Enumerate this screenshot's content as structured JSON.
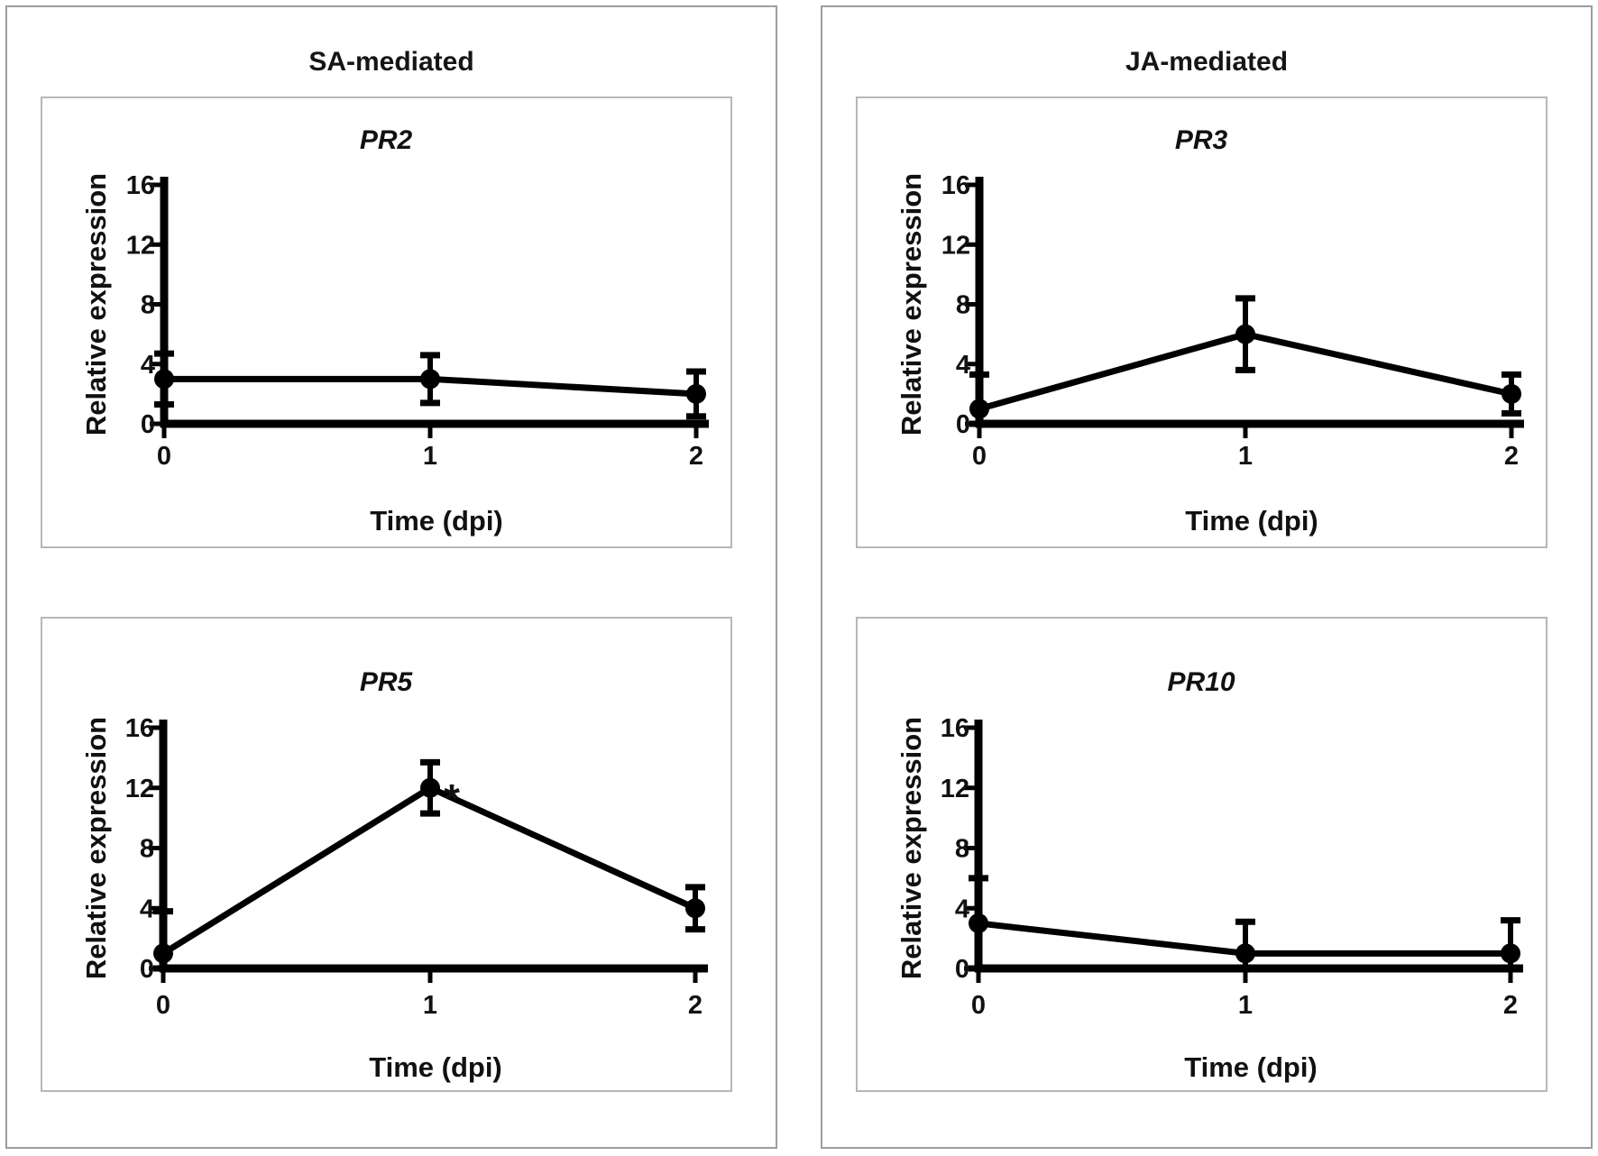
{
  "panels": [
    {
      "title": "SA-mediated",
      "chart_ids": [
        "PR2",
        "PR5"
      ]
    },
    {
      "title": "JA-mediated",
      "chart_ids": [
        "PR3",
        "PR10"
      ]
    }
  ],
  "colors": {
    "series": "#000000",
    "text": "#111111",
    "panel_border": "#9d9d9d",
    "chart_border": "#b7b7b7",
    "background": "#ffffff"
  },
  "chart_data": [
    {
      "id": "PR2",
      "type": "line",
      "panel": "SA-mediated",
      "position": "top-left",
      "title": "PR2",
      "xlabel": "Time (dpi)",
      "ylabel": "Relative expression",
      "x": [
        0,
        1,
        2
      ],
      "xticklabels": [
        "0",
        "1",
        "2"
      ],
      "y": [
        3,
        3,
        2
      ],
      "yerr": [
        1.7,
        1.6,
        1.5
      ],
      "ylim": [
        0,
        16
      ],
      "yticks": [
        0,
        4,
        8,
        12,
        16
      ],
      "marker": "filled-circle",
      "grid": false,
      "legend": null,
      "significance": []
    },
    {
      "id": "PR3",
      "type": "line",
      "panel": "JA-mediated",
      "position": "top-right",
      "title": "PR3",
      "xlabel": "Time (dpi)",
      "ylabel": "Relative expression",
      "x": [
        0,
        1,
        2
      ],
      "xticklabels": [
        "0",
        "1",
        "2"
      ],
      "y": [
        1,
        6,
        2
      ],
      "yerr": [
        2.3,
        2.4,
        1.3
      ],
      "ylim": [
        0,
        16
      ],
      "yticks": [
        0,
        4,
        8,
        12,
        16
      ],
      "marker": "filled-circle",
      "grid": false,
      "legend": null,
      "significance": []
    },
    {
      "id": "PR5",
      "type": "line",
      "panel": "SA-mediated",
      "position": "bottom-left",
      "title": "PR5",
      "xlabel": "Time (dpi)",
      "ylabel": "Relative expression",
      "x": [
        0,
        1,
        2
      ],
      "xticklabels": [
        "0",
        "1",
        "2"
      ],
      "y": [
        1,
        12,
        4
      ],
      "yerr": [
        2.8,
        1.7,
        1.4
      ],
      "ylim": [
        0,
        16
      ],
      "yticks": [
        0,
        4,
        8,
        12,
        16
      ],
      "marker": "filled-circle",
      "grid": false,
      "legend": null,
      "significance": [
        {
          "point_index": 1,
          "label": "*"
        }
      ]
    },
    {
      "id": "PR10",
      "type": "line",
      "panel": "JA-mediated",
      "position": "bottom-right",
      "title": "PR10",
      "xlabel": "Time (dpi)",
      "ylabel": "Relative expression",
      "x": [
        0,
        1,
        2
      ],
      "xticklabels": [
        "0",
        "1",
        "2"
      ],
      "y": [
        3,
        1,
        1
      ],
      "yerr": [
        3.0,
        2.1,
        2.2
      ],
      "ylim": [
        0,
        16
      ],
      "yticks": [
        0,
        4,
        8,
        12,
        16
      ],
      "marker": "filled-circle",
      "grid": false,
      "legend": null,
      "significance": []
    }
  ]
}
